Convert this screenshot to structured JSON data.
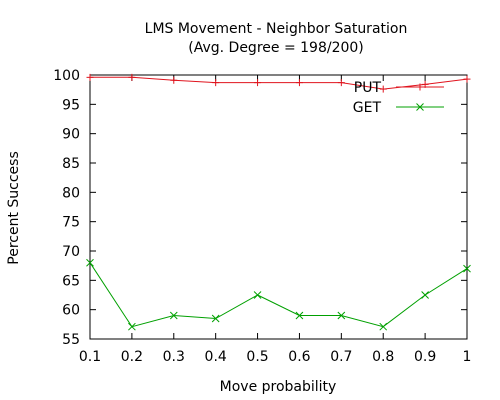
{
  "chart_data": {
    "type": "line",
    "title": "LMS Movement - Neighbor Saturation",
    "subtitle": "(Avg. Degree = 198/200)",
    "xlabel": "Move probability",
    "ylabel": "Percent Success",
    "xlim": [
      0.1,
      1.0
    ],
    "ylim": [
      55,
      100
    ],
    "xticks": [
      "0.1",
      "0.2",
      "0.3",
      "0.4",
      "0.5",
      "0.6",
      "0.7",
      "0.8",
      "0.9",
      "1"
    ],
    "yticks": [
      "55",
      "60",
      "65",
      "70",
      "75",
      "80",
      "85",
      "90",
      "95",
      "100"
    ],
    "legend_position": "top-right",
    "grid": false,
    "series": [
      {
        "name": "PUT",
        "color": "#e0141e",
        "marker": "plus",
        "x": [
          0.1,
          0.2,
          0.3,
          0.4,
          0.5,
          0.6,
          0.7,
          0.8,
          0.9,
          1.0
        ],
        "y": [
          99.6,
          99.6,
          99.1,
          98.7,
          98.7,
          98.7,
          98.7,
          97.6,
          98.4,
          99.3
        ]
      },
      {
        "name": "GET",
        "color": "#00a000",
        "marker": "cross",
        "x": [
          0.1,
          0.2,
          0.3,
          0.4,
          0.5,
          0.6,
          0.7,
          0.8,
          0.9,
          1.0
        ],
        "y": [
          68.0,
          57.1,
          59.0,
          58.5,
          62.5,
          59.0,
          59.0,
          57.1,
          62.5,
          67.0
        ]
      }
    ]
  }
}
